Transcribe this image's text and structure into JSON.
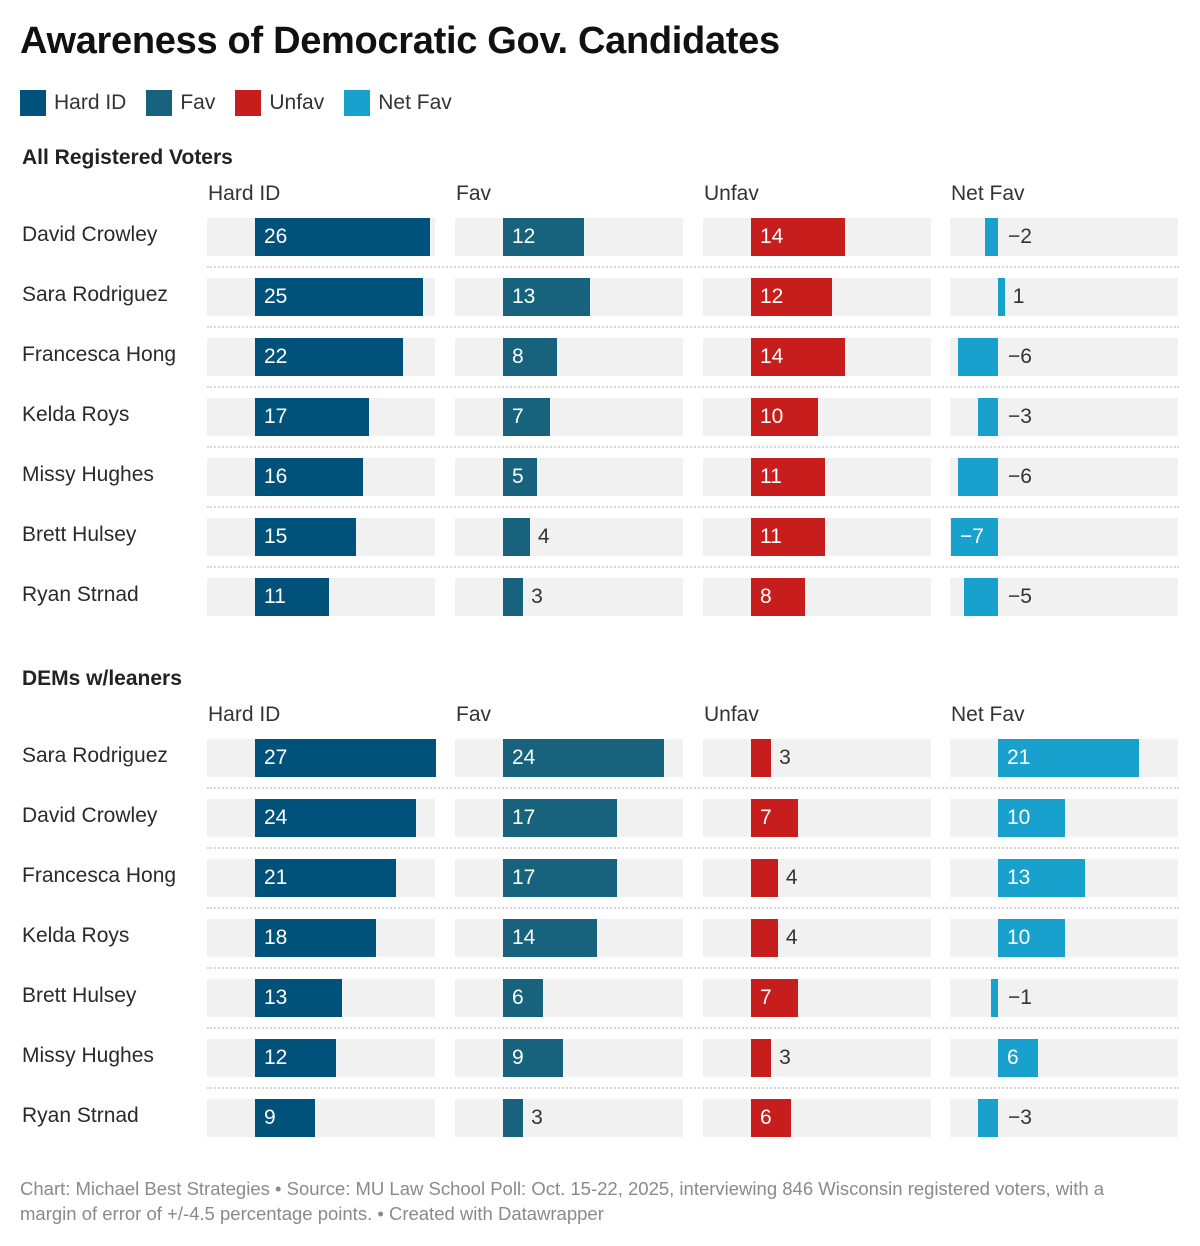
{
  "chart_data": {
    "type": "bar",
    "title": "Awareness of Democratic Gov. Candidates",
    "legend": [
      {
        "name": "Hard ID",
        "color": "#00527a"
      },
      {
        "name": "Fav",
        "color": "#17627c"
      },
      {
        "name": "Unfav",
        "color": "#c71e1d"
      },
      {
        "name": "Net Fav",
        "color": "#18a1cd"
      }
    ],
    "columns": [
      "Hard ID",
      "Fav",
      "Unfav",
      "Net Fav"
    ],
    "column_colors": [
      "#00527a",
      "#17627c",
      "#c71e1d",
      "#18a1cd"
    ],
    "sections": [
      {
        "title": "All Registered Voters",
        "rows": [
          {
            "name": "David Crowley",
            "values": [
              26,
              12,
              14,
              -2
            ]
          },
          {
            "name": "Sara Rodriguez",
            "values": [
              25,
              13,
              12,
              1
            ]
          },
          {
            "name": "Francesca Hong",
            "values": [
              22,
              8,
              14,
              -6
            ]
          },
          {
            "name": "Kelda Roys",
            "values": [
              17,
              7,
              10,
              -3
            ]
          },
          {
            "name": "Missy Hughes",
            "values": [
              16,
              5,
              11,
              -6
            ]
          },
          {
            "name": "Brett Hulsey",
            "values": [
              15,
              4,
              11,
              -7
            ]
          },
          {
            "name": "Ryan Strnad",
            "values": [
              11,
              3,
              8,
              -5
            ]
          }
        ]
      },
      {
        "title": "DEMs w/leaners",
        "rows": [
          {
            "name": "Sara Rodriguez",
            "values": [
              27,
              24,
              3,
              21
            ]
          },
          {
            "name": "David Crowley",
            "values": [
              24,
              17,
              7,
              10
            ]
          },
          {
            "name": "Francesca Hong",
            "values": [
              21,
              17,
              4,
              13
            ]
          },
          {
            "name": "Kelda Roys",
            "values": [
              18,
              14,
              4,
              10
            ]
          },
          {
            "name": "Brett Hulsey",
            "values": [
              13,
              6,
              7,
              -1
            ]
          },
          {
            "name": "Missy Hughes",
            "values": [
              12,
              9,
              3,
              6
            ]
          },
          {
            "name": "Ryan Strnad",
            "values": [
              9,
              3,
              6,
              -3
            ]
          }
        ]
      }
    ],
    "xlim": [
      -7,
      27
    ],
    "footer": "Chart: Michael Best Strategies • Source: MU Law School Poll: Oct. 15-22, 2025, interviewing 846 Wisconsin registered voters, with a margin of error of +/-4.5 percentage points. • Created with Datawrapper"
  }
}
